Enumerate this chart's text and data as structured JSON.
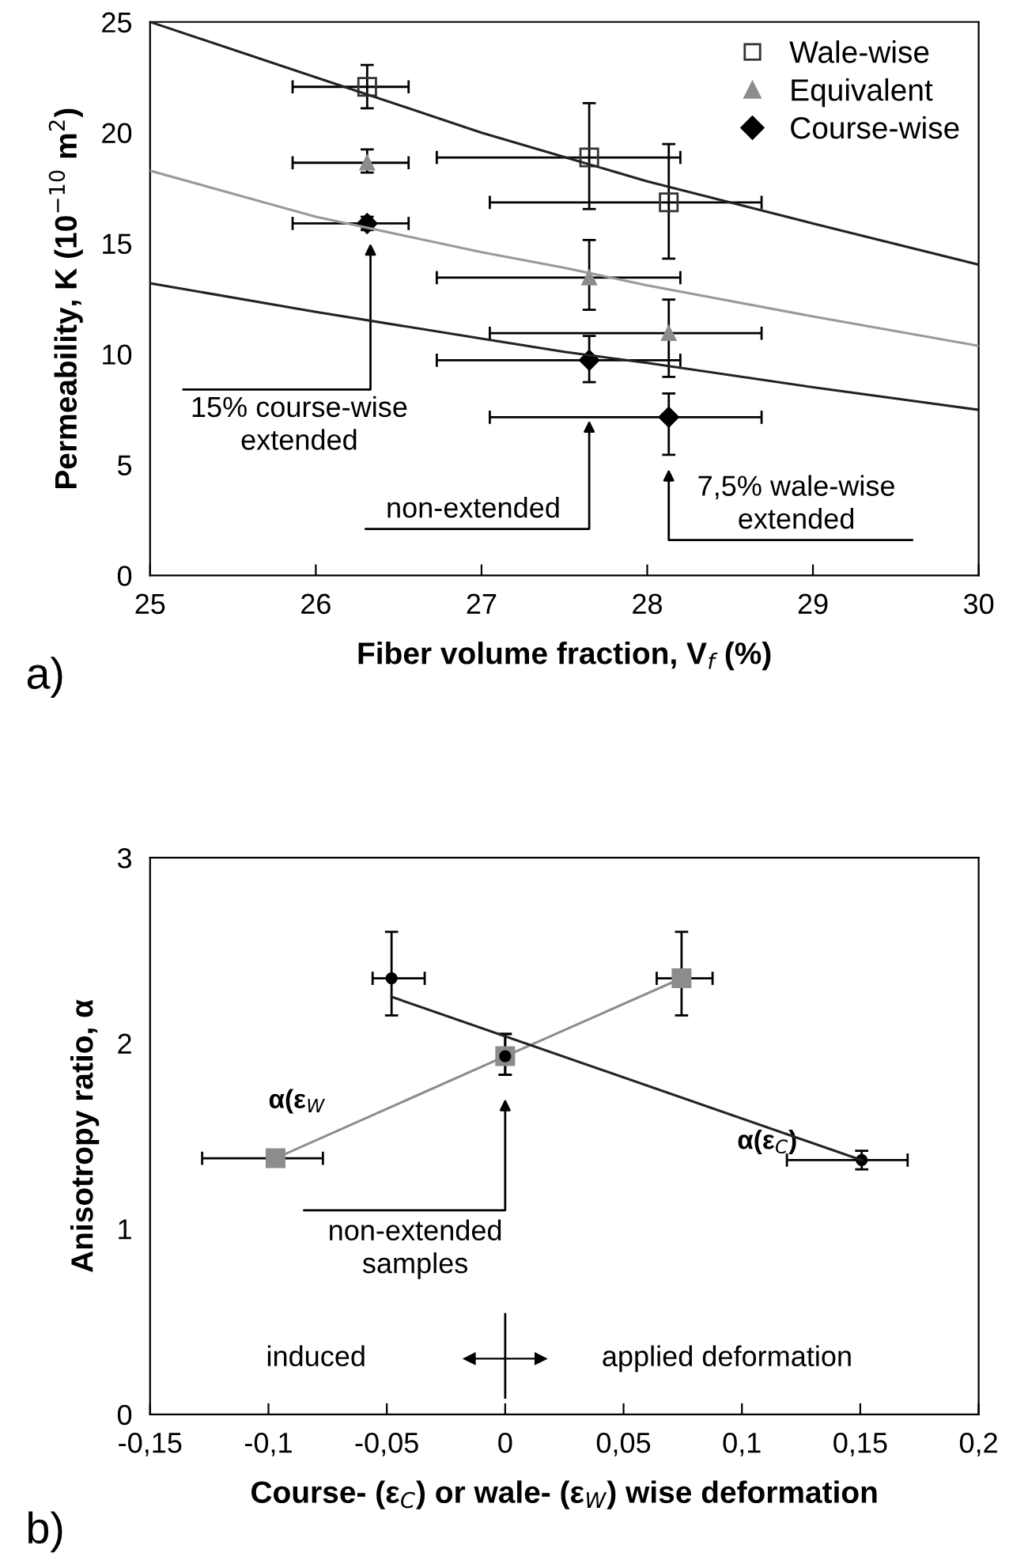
{
  "chart_data": [
    {
      "type": "scatter",
      "xlabel": "Fiber volume fraction, V$_{f}$ (%)",
      "ylabel": "Permeability, K (10$^{−10}$ m$^{2}$)",
      "xlim": [
        25,
        30
      ],
      "xticks": [
        25,
        26,
        27,
        28,
        29,
        30
      ],
      "ylim": [
        0,
        25
      ],
      "yticks": [
        0,
        5,
        10,
        15,
        20,
        25
      ],
      "legend": "top right",
      "series": [
        {
          "name": "Wale-wise",
          "marker": "square",
          "color": "#333333",
          "x": [
            26.31,
            27.65,
            28.13
          ],
          "values": [
            22.07,
            18.88,
            16.85
          ],
          "errors": [
            [
              21.1,
              23.06
            ],
            [
              16.55,
              21.33
            ],
            [
              14.31,
              19.48
            ]
          ],
          "xerrors": [
            [
              25.86,
              26.56
            ],
            [
              26.73,
              28.2
            ],
            [
              27.05,
              28.69
            ]
          ]
        },
        {
          "name": "Equivalent",
          "marker": "triangle",
          "color": "#8c8c8c",
          "x": [
            26.31,
            27.65,
            28.13
          ],
          "values": [
            18.64,
            13.45,
            10.94
          ],
          "errors": [
            [
              18.2,
              19.24
            ],
            [
              12.0,
              15.15
            ],
            [
              8.97,
              12.46
            ]
          ],
          "xerrors": [
            [
              25.86,
              26.56
            ],
            [
              26.73,
              28.2
            ],
            [
              27.05,
              28.69
            ]
          ]
        },
        {
          "name": "Course-wise",
          "marker": "diamond",
          "color": "#000000",
          "x": [
            26.31,
            27.65,
            28.13
          ],
          "values": [
            15.9,
            9.72,
            7.15
          ],
          "errors": [
            [
              15.6,
              16.2
            ],
            [
              8.73,
              10.82
            ],
            [
              5.45,
              8.22
            ]
          ],
          "xerrors": [
            [
              25.86,
              26.56
            ],
            [
              26.73,
              28.2
            ],
            [
              27.05,
              28.69
            ]
          ]
        },
        {
          "type": "line",
          "color": "#222222",
          "x": [
            25,
            26,
            27,
            27.5,
            28,
            29,
            30
          ],
          "values": [
            25.0,
            22.5,
            20.0,
            18.9,
            17.8,
            15.9,
            14.04
          ]
        },
        {
          "type": "line",
          "color": "#999999",
          "x": [
            25,
            26,
            27,
            27.5,
            28,
            29,
            30
          ],
          "values": [
            18.28,
            16.2,
            14.6,
            13.9,
            13.1,
            11.7,
            10.37
          ]
        },
        {
          "type": "line",
          "color": "#222222",
          "x": [
            25,
            26,
            27,
            27.5,
            28,
            29,
            30
          ],
          "values": [
            13.2,
            11.9,
            10.7,
            10.1,
            9.6,
            8.5,
            7.48
          ]
        }
      ],
      "annotations": [
        "a)",
        "15% course-wise\nextended",
        {
          "text": "non-extended",
          "x": 27.65,
          "y": 7.0
        },
        "7,5% wale-wise\nextended"
      ]
    },
    {
      "type": "scatter",
      "xlabel": "Course- (ε$_{C}$) or wale- (ε$_{W}$) wise deformation",
      "ylabel": "Anisotropy ratio, α",
      "xlim": [
        -0.15,
        0.2
      ],
      "xticks": [
        {
          "value": -0.15,
          "label": "-0,15"
        },
        {
          "value": -0.1,
          "label": "-0,1"
        },
        {
          "value": -0.05,
          "label": "-0,05"
        },
        0,
        {
          "value": 0.05,
          "label": "0,05"
        },
        {
          "value": 0.1,
          "label": "0,1"
        },
        {
          "value": 0.15,
          "label": "0,15"
        },
        {
          "value": 0.2,
          "label": "0,2"
        }
      ],
      "ylim": [
        0,
        3
      ],
      "yticks": [
        0,
        1,
        2,
        3
      ],
      "series": [
        {
          "name": "α(ε$_{W}$",
          "type": "line",
          "marker": "square",
          "color": "#8c8c8c",
          "x": [
            -0.097,
            0,
            0.0745
          ],
          "values": [
            1.38,
            1.93,
            2.35
          ],
          "errors": [
            [
              1.35,
              1.41
            ],
            [
              1.83,
              2.05
            ],
            [
              2.15,
              2.6
            ]
          ],
          "xerrors": [
            [
              -0.128,
              -0.077
            ],
            null,
            [
              0.064,
              0.0876
            ]
          ]
        },
        {
          "name": "α(ε$_{C}$)",
          "marker": "circle",
          "color": "#000000",
          "x": [
            -0.048,
            0,
            0.1506
          ],
          "values": [
            2.35,
            1.93,
            1.37
          ],
          "errors": [
            [
              2.15,
              2.6
            ],
            [
              1.83,
              2.05
            ],
            [
              1.32,
              1.42
            ]
          ],
          "xerrors": [
            [
              -0.056,
              -0.034
            ],
            null,
            [
              0.119,
              0.17
            ]
          ]
        },
        {
          "type": "line",
          "color": "#222222",
          "x": [
            -0.048,
            0.1506
          ],
          "values": [
            2.25,
            1.37
          ]
        }
      ],
      "annotations": [
        "b)",
        "induced",
        "applied deformation",
        "non-extended\nsamples"
      ]
    }
  ]
}
